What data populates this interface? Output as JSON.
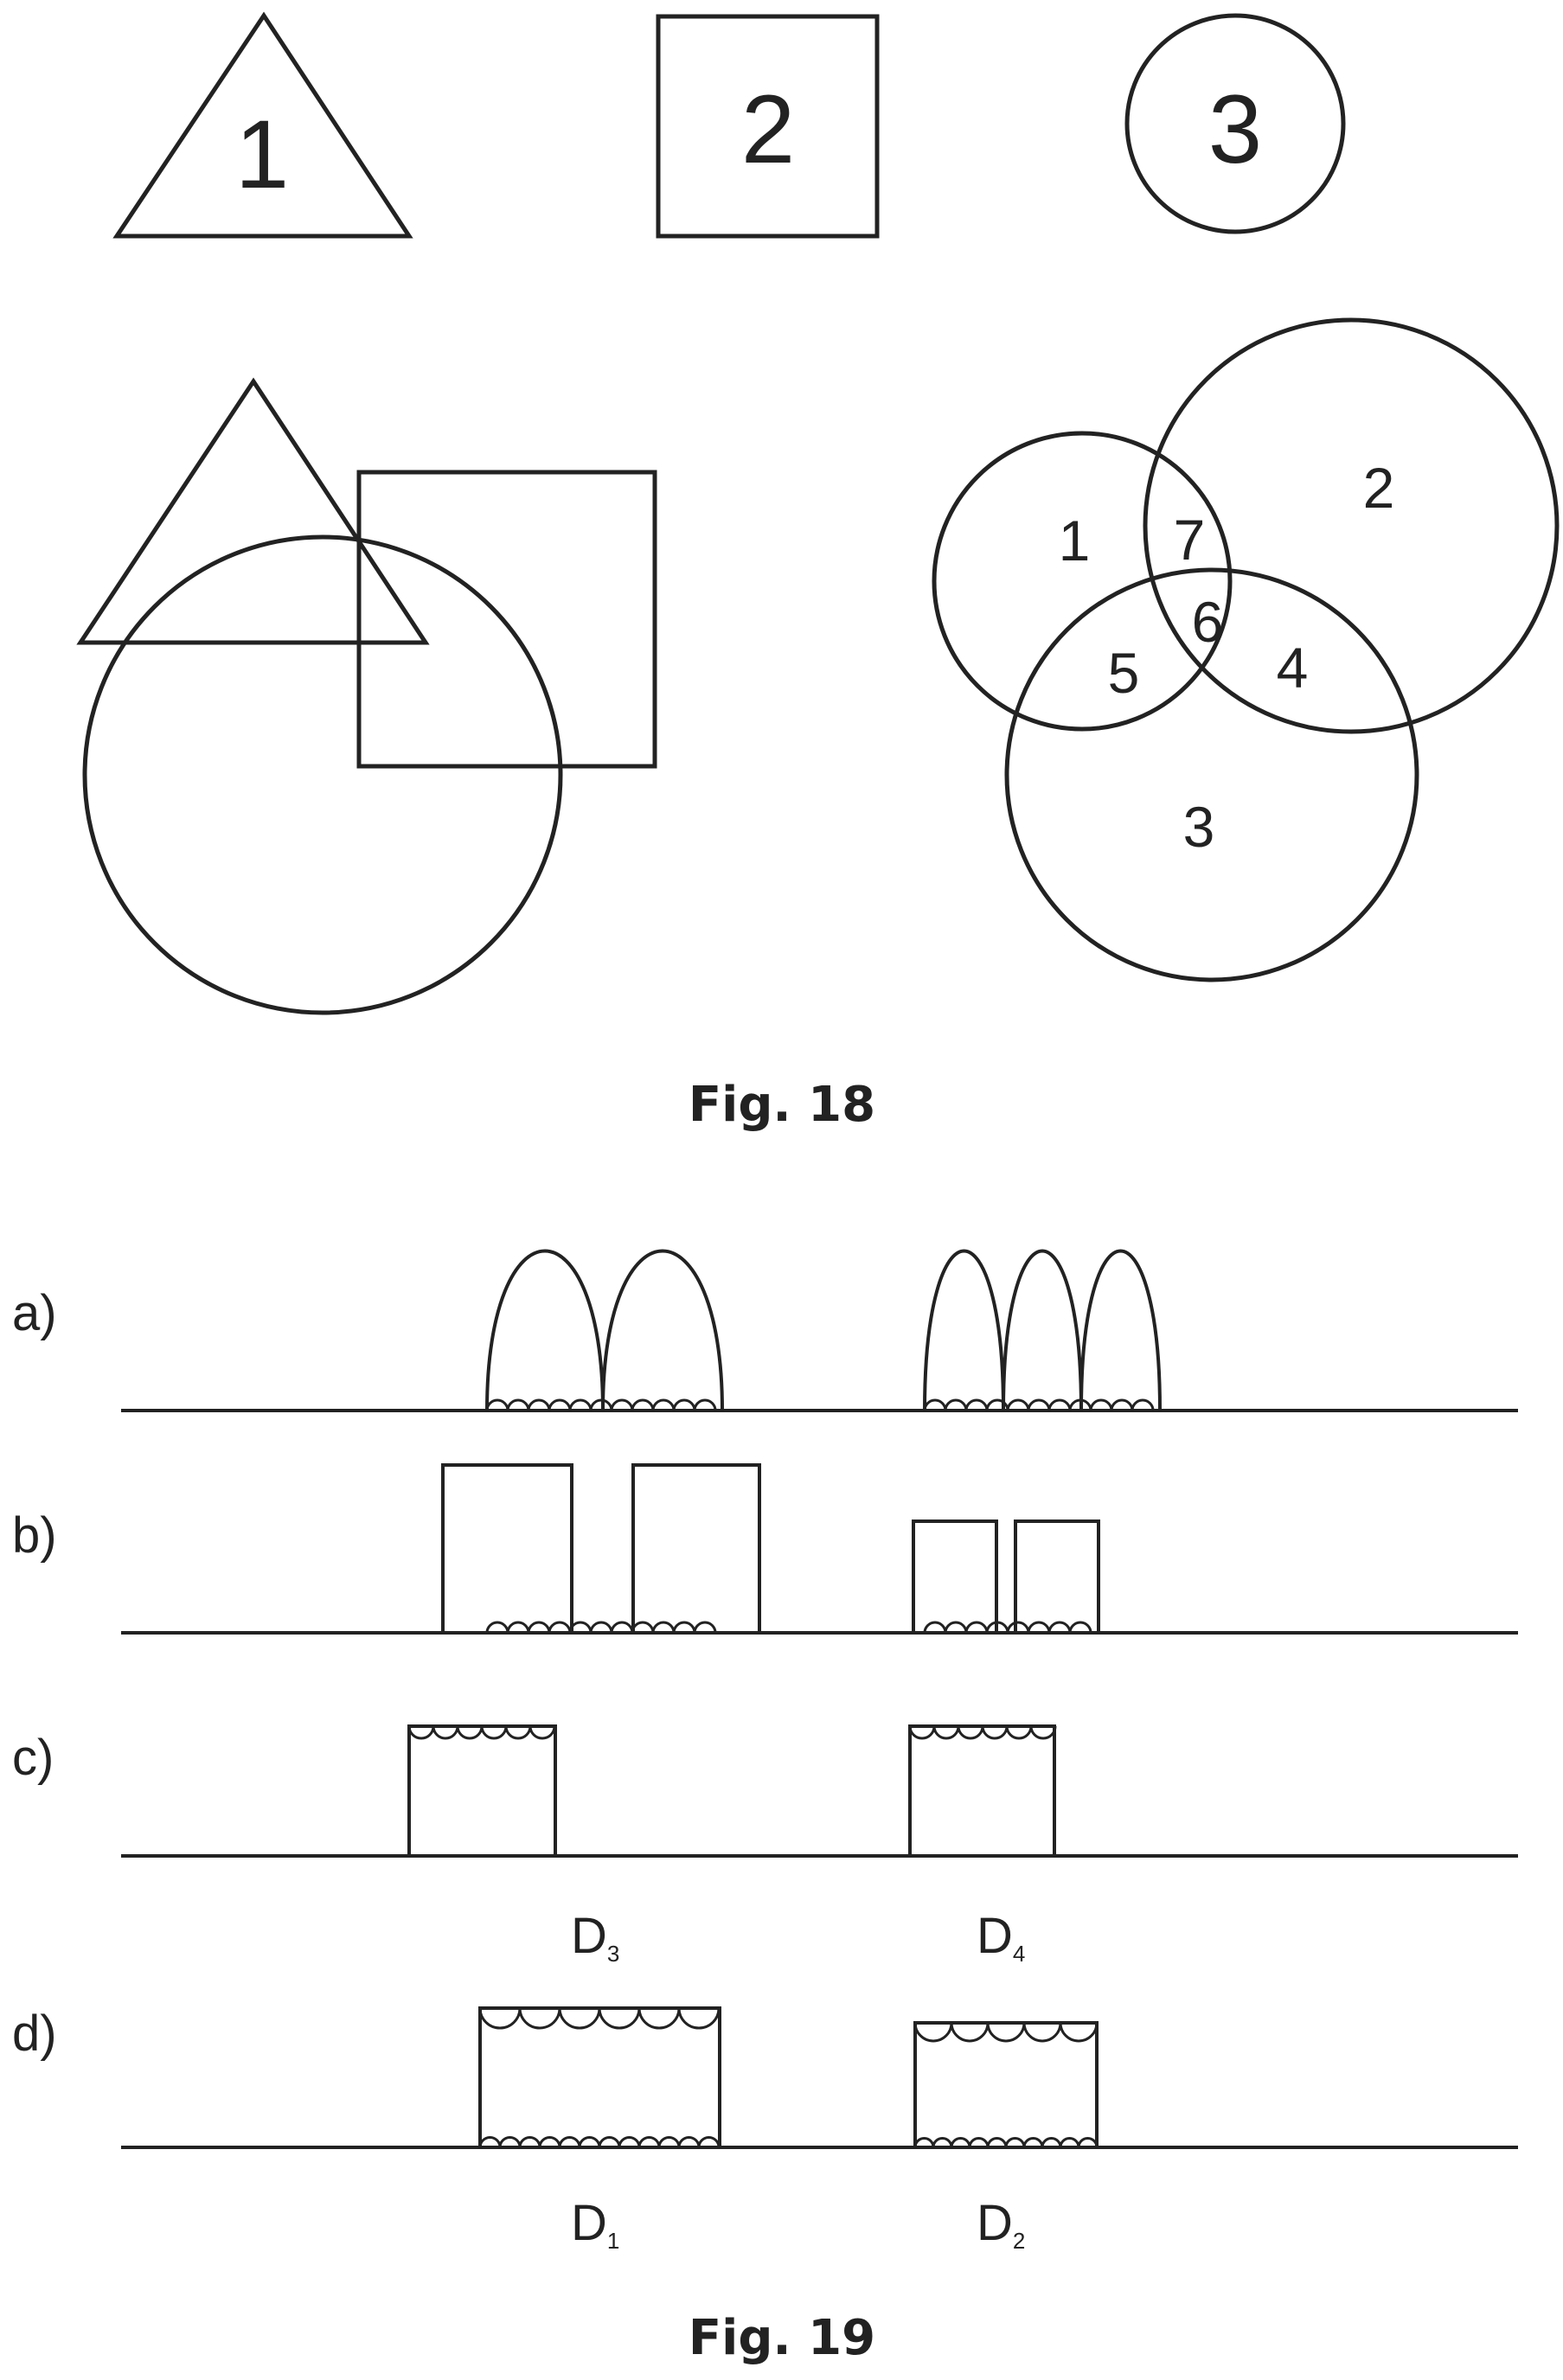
{
  "fig18": {
    "caption": "Fig. 18",
    "triangle_label": "1",
    "square_label": "2",
    "circle_label": "3",
    "venn": {
      "region_1": "1",
      "region_2": "2",
      "region_3": "3",
      "region_4": "4",
      "region_5": "5",
      "region_6": "6",
      "region_7": "7"
    }
  },
  "fig19": {
    "caption": "Fig. 19",
    "row_a_label": "a)",
    "row_b_label": "b)",
    "row_c_label": "c)",
    "row_d_label": "d)",
    "d3": {
      "main": "D",
      "sub": "3"
    },
    "d4": {
      "main": "D",
      "sub": "4"
    },
    "d1": {
      "main": "D",
      "sub": "1"
    },
    "d2": {
      "main": "D",
      "sub": "2"
    }
  }
}
